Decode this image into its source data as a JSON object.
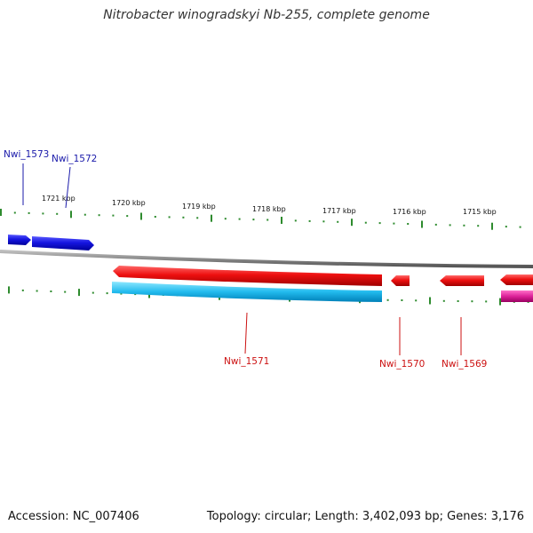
{
  "title": "Nitrobacter winogradskyi Nb-255, complete genome",
  "footer": {
    "accession": "Accession: NC_007406",
    "summary": "Topology: circular; Length: 3,402,093 bp; Genes: 3,176"
  },
  "colors": {
    "backbone": "#808080",
    "tick": "#2e8b2e",
    "forward_gene": "#1010dd",
    "reverse_gene": "#ee1111",
    "cds": "#22bbee",
    "other": "#dd2299",
    "forward_label": "#1a1aaa",
    "reverse_label": "#cc1111"
  },
  "scale": {
    "unit": "kbp",
    "labels": [
      "1721 kbp",
      "1720 kbp",
      "1719 kbp",
      "1718 kbp",
      "1717 kbp",
      "1716 kbp",
      "1715 kbp"
    ]
  },
  "genes": [
    {
      "name": "Nwi_1573",
      "strand": "forward"
    },
    {
      "name": "Nwi_1572",
      "strand": "forward"
    },
    {
      "name": "Nwi_1571",
      "strand": "reverse"
    },
    {
      "name": "Nwi_1570",
      "strand": "reverse"
    },
    {
      "name": "Nwi_1569",
      "strand": "reverse"
    }
  ]
}
